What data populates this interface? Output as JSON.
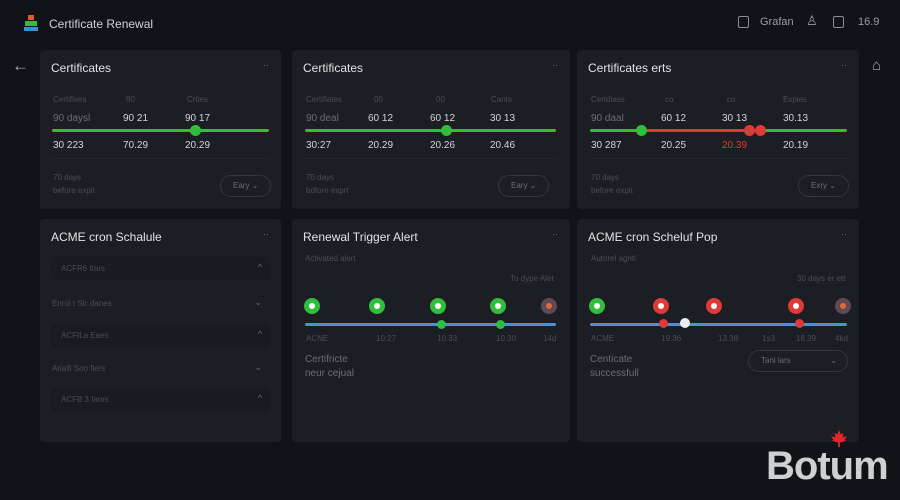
{
  "header": {
    "title": "Certificate Renewal",
    "user": "Grafan",
    "version": "16.9"
  },
  "colors": {
    "green": "#2fbf3c",
    "red": "#e0393a",
    "blue": "#4f8fd8",
    "panel": "#1c1e24",
    "background": "#121318"
  },
  "icons": {
    "back": "arrow-left-icon",
    "home": "home-icon",
    "bell": "bell-icon"
  },
  "panels": [
    {
      "title": "Certificates",
      "headers": [
        "Certifixes",
        "90",
        "Crties"
      ],
      "row1": [
        "90 daysl",
        "90 21",
        "90 17"
      ],
      "row2": [
        "30 223",
        "70.29",
        "20.29"
      ],
      "note": [
        "70 days",
        "before expit"
      ],
      "select": "Eary",
      "slider_value": 0.56
    },
    {
      "title": "Certificates",
      "headers": [
        "Certifiates",
        "00",
        "00",
        "Cants"
      ],
      "row1": [
        "90 deal",
        "60 12",
        "60 12",
        "30 13"
      ],
      "row2": [
        "30:27",
        "20.29",
        "20.26",
        "20.46"
      ],
      "note": [
        "70 days",
        "bdfore exprt"
      ],
      "select": "Eary",
      "slider_value": 0.56
    },
    {
      "title": "Certificates erts",
      "headers": [
        "Certdiass",
        "co",
        "co",
        "Expies"
      ],
      "row1": [
        "90 daal",
        "60 12",
        "30 13",
        "30.13"
      ],
      "row2": [
        "30 287",
        "20.25",
        "20.39",
        "20.19"
      ],
      "note": [
        "70 days",
        "before expit"
      ],
      "select": "Exry"
    },
    {
      "title": "ACME cron Schalule",
      "items": [
        {
          "label": "ACFR6 Itars",
          "open": true
        },
        {
          "label": "Enroi t Str danes",
          "open": false
        },
        {
          "label": "ACFILa Eaes",
          "open": true
        },
        {
          "label": "Arialll Soo fiers",
          "open": false
        },
        {
          "label": "ACFB 3 fams",
          "open": true
        }
      ]
    },
    {
      "title": "Renewal Trigger Alert",
      "subtitle": "Activated alert",
      "right_label": "To dype Alet",
      "labels": [
        "ACNE",
        "10.27",
        "10.33",
        "10.30",
        "14d"
      ],
      "status": [
        "ok",
        "ok",
        "ok",
        "ok",
        "muted"
      ],
      "foot": [
        "Certifricte",
        "neur cejual"
      ]
    },
    {
      "title": "ACME cron Scheluf Pop",
      "subtitle": "Autorel agnti",
      "right_label": "30 days er ett",
      "labels": [
        "ACME",
        "19.36",
        "13.38",
        "1s3",
        "18.39",
        "4kd"
      ],
      "status": [
        "ok",
        "error",
        "error",
        "error",
        "muted"
      ],
      "foot": [
        "Centicate",
        "successfull"
      ],
      "select": "Tani lars"
    }
  ],
  "watermark": "Botum"
}
